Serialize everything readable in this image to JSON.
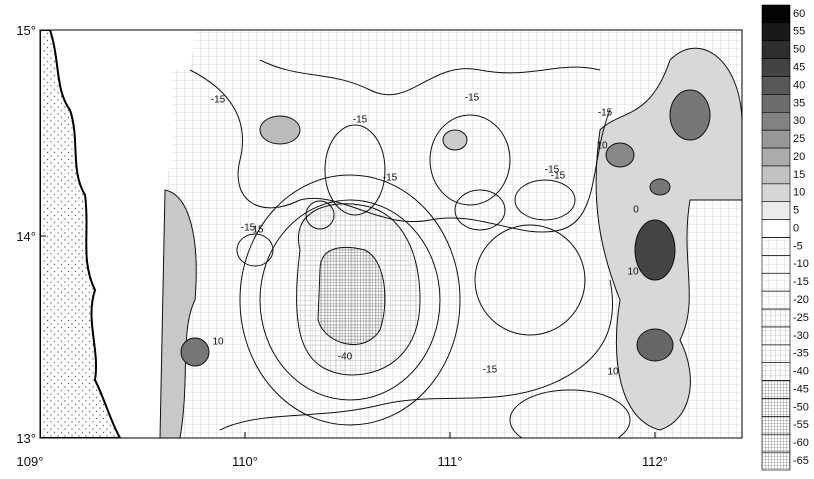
{
  "map": {
    "lat_labels": [
      "15°",
      "14°",
      "13°"
    ],
    "lon_labels": [
      "109°",
      "110°",
      "111°",
      "112°"
    ],
    "colorbar_labels": [
      "60",
      "55",
      "50",
      "45",
      "40",
      "35",
      "30",
      "25",
      "20",
      "15",
      "10",
      "5",
      "0",
      "-5",
      "-10",
      "-15",
      "-20",
      "-25",
      "-30",
      "-35",
      "-40",
      "-45",
      "-50",
      "-55",
      "-60",
      "-65"
    ],
    "contour_labels": [
      "-15",
      "-15",
      "-15",
      "-15",
      "-15",
      "-15",
      "-15",
      "-15",
      "-15",
      "10",
      "10",
      "10",
      "10",
      "-40",
      "15",
      "0"
    ]
  }
}
